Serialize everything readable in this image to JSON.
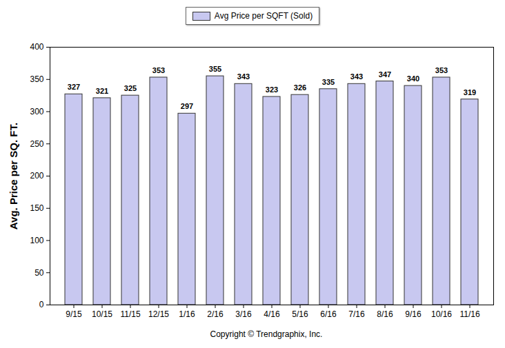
{
  "chart_data": {
    "type": "bar",
    "categories": [
      "9/15",
      "10/15",
      "11/15",
      "12/15",
      "1/16",
      "2/16",
      "3/16",
      "4/16",
      "5/16",
      "6/16",
      "7/16",
      "8/16",
      "9/16",
      "10/16",
      "11/16"
    ],
    "series": [
      {
        "name": "Avg Price per SQFT (Sold)",
        "color": "#c8c8f0",
        "values": [
          327,
          321,
          325,
          353,
          297,
          355,
          343,
          323,
          326,
          335,
          343,
          347,
          340,
          353,
          319
        ]
      }
    ],
    "y_label": "Avg. Price per SQ. FT.",
    "caption": "Copyright © Trendgraphix, Inc.",
    "ylim": [
      0,
      400
    ],
    "yticks": [
      0,
      50,
      100,
      150,
      200,
      250,
      300,
      350,
      400
    ],
    "grid": false,
    "legend": "top",
    "data_labels": true
  }
}
